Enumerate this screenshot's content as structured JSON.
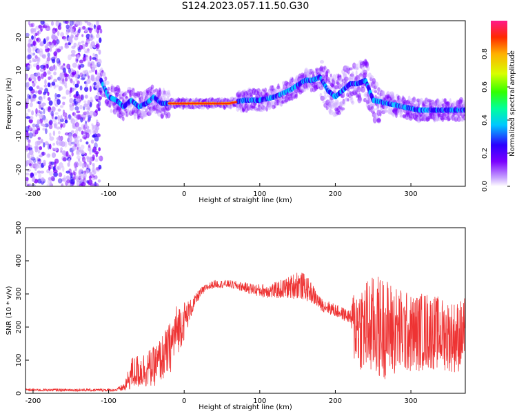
{
  "title": "S124.2023.057.11.50.G30",
  "chart_data": [
    {
      "type": "heatmap",
      "xlabel": "Height of straight line (km)",
      "ylabel": "Frequency (Hz)",
      "xlim": [
        -210,
        372
      ],
      "ylim": [
        -25,
        25
      ],
      "x_ticks": [
        -200,
        -100,
        0,
        100,
        200,
        300
      ],
      "y_ticks": [
        -20,
        -10,
        0,
        10,
        20
      ],
      "colorbar": {
        "label": "Normalized spectral amplitude",
        "range": [
          0,
          1
        ],
        "ticks": [
          "0.0",
          "0.2",
          "0.4",
          "0.6",
          "0.8"
        ]
      },
      "colormap": [
        "#ffffff",
        "#c9a6ff",
        "#7a00ff",
        "#2b00ff",
        "#00c8ff",
        "#00ff9c",
        "#33ff00",
        "#d8ff00",
        "#ffb000",
        "#ff2a00",
        "#ff1a8a"
      ],
      "ridge": {
        "height_km": [
          -110,
          -100,
          -90,
          -80,
          -70,
          -60,
          -50,
          -40,
          -30,
          -20,
          0,
          20,
          40,
          60,
          70,
          80,
          100,
          120,
          140,
          160,
          170,
          180,
          190,
          200,
          210,
          220,
          230,
          240,
          250,
          270,
          290,
          310,
          330,
          350,
          370
        ],
        "frequency_hz": [
          7,
          2,
          1,
          -1,
          1,
          -1,
          0,
          2,
          0,
          0,
          0,
          0,
          0,
          0,
          0.5,
          1,
          1,
          2,
          4,
          7,
          7,
          8,
          4,
          2,
          4,
          6,
          6,
          7,
          1,
          0,
          -1,
          -2,
          -2,
          -2,
          -2
        ]
      },
      "noise_region_km": [
        -210,
        -110
      ]
    },
    {
      "type": "line",
      "xlabel": "Height of straight line (km)",
      "ylabel": "SNR (10 * v/v)",
      "xlim": [
        -210,
        372
      ],
      "ylim": [
        0,
        500
      ],
      "x_ticks": [
        -200,
        -100,
        0,
        100,
        200,
        300
      ],
      "y_ticks": [
        0,
        100,
        200,
        300,
        400,
        500
      ],
      "color": "#ee3333",
      "envelope": {
        "height_km": [
          -210,
          -90,
          -78,
          -70,
          -40,
          -20,
          -10,
          0,
          10,
          20,
          30,
          40,
          60,
          80,
          100,
          120,
          140,
          150,
          160,
          170,
          180,
          200,
          220,
          225,
          240,
          260,
          280,
          300,
          320,
          340,
          360,
          372
        ],
        "snr_mean": [
          10,
          10,
          20,
          60,
          80,
          130,
          190,
          220,
          260,
          300,
          320,
          330,
          330,
          320,
          310,
          310,
          320,
          330,
          320,
          300,
          270,
          250,
          230,
          210,
          200,
          200,
          190,
          180,
          190,
          180,
          170,
          180
        ],
        "snr_spread": [
          4,
          4,
          15,
          50,
          60,
          80,
          80,
          60,
          25,
          15,
          12,
          12,
          12,
          15,
          20,
          25,
          35,
          45,
          40,
          30,
          20,
          20,
          20,
          120,
          150,
          160,
          140,
          120,
          120,
          110,
          110,
          110
        ]
      }
    }
  ]
}
